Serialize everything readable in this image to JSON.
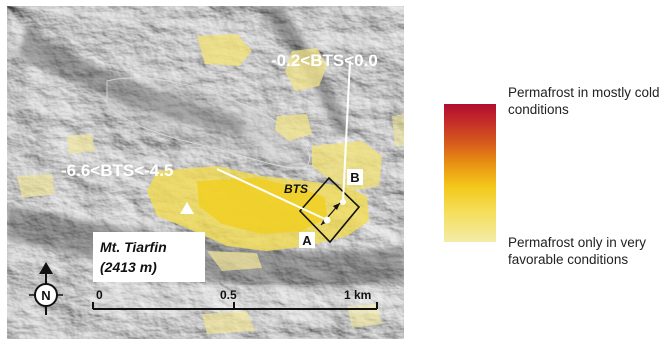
{
  "map": {
    "labels": {
      "bts_upper": "-0.2<BTS<0.0",
      "bts_lower": "-6.6<BTS<-4.5",
      "bts_box": "BTS",
      "point_a": "A",
      "point_b": "B"
    },
    "peak": {
      "name": "Mt. Tiarfin",
      "elevation": "(2413 m)",
      "marker_icon": "triangle-peak-icon"
    },
    "north_arrow": {
      "letter": "N",
      "icon": "north-arrow-icon"
    },
    "scale_bar": {
      "ticks": [
        "0",
        "0.5",
        "1 km"
      ]
    },
    "colors": {
      "hillshade": "#8a8a8a",
      "permafrost_low": "#f3eca8",
      "permafrost_high": "#b00d2e"
    }
  },
  "legend": {
    "top_label": "Permafrost in mostly cold conditions",
    "bottom_label": "Permafrost only in very favorable conditions"
  }
}
